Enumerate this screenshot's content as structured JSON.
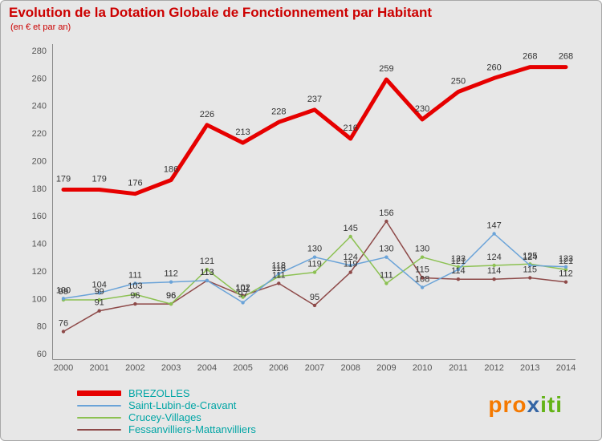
{
  "header": {
    "title": "Evolution de la Dotation Globale de Fonctionnement par Habitant",
    "subtitle": "(en € et par an)"
  },
  "chart_data": {
    "type": "line",
    "title": "Evolution de la Dotation Globale de Fonctionnement par Habitant",
    "subtitle": "(en € et par an)",
    "categories": [
      "2000",
      "2001",
      "2002",
      "2003",
      "2004",
      "2005",
      "2006",
      "2007",
      "2008",
      "2009",
      "2010",
      "2011",
      "2012",
      "2013",
      "2014"
    ],
    "series": [
      {
        "name": "BREZOLLES",
        "color": "#e60000",
        "width": 5,
        "values": [
          179,
          179,
          176,
          186,
          226,
          213,
          228,
          237,
          216,
          259,
          230,
          250,
          260,
          268,
          268
        ]
      },
      {
        "name": "Saint-Lubin-de-Cravant",
        "color": "#6aa3d8",
        "width": 1.5,
        "values": [
          100,
          104,
          111,
          112,
          113,
          97,
          118,
          130,
          124,
          130,
          108,
          121,
          147,
          124,
          123
        ]
      },
      {
        "name": "Crucey-Villages",
        "color": "#8cc152",
        "width": 1.5,
        "values": [
          99,
          99,
          103,
          96,
          121,
          101,
          116,
          119,
          145,
          111,
          130,
          123,
          124,
          125,
          121
        ]
      },
      {
        "name": "Fessanvilliers-Mattanvilliers",
        "color": "#8e4a49",
        "width": 1.5,
        "values": [
          76,
          91,
          96,
          96,
          113,
          102,
          111,
          95,
          119,
          156,
          115,
          114,
          114,
          115,
          112
        ]
      }
    ],
    "ylim": [
      60,
      280
    ],
    "yticks": [
      60,
      80,
      100,
      120,
      140,
      160,
      180,
      200,
      220,
      240,
      260,
      280
    ],
    "grid": false,
    "legend_position": "bottom-left",
    "xlabel": "",
    "ylabel": ""
  },
  "logo": {
    "parts": [
      {
        "text": "pro",
        "color": "#f57900"
      },
      {
        "text": "x",
        "color": "#3465a4"
      },
      {
        "text": "iti",
        "color": "#63b316"
      }
    ]
  }
}
